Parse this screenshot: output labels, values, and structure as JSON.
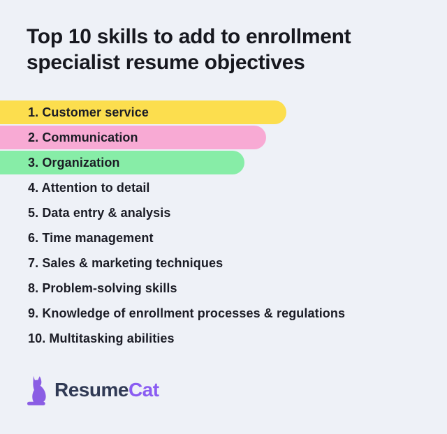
{
  "page": {
    "background_color": "#eef1f7"
  },
  "title": {
    "line1": "Top 10 skills to add to enrollment",
    "line2": "specialist resume objectives",
    "color": "#17181f"
  },
  "skills_list": {
    "text_color": "#1b1c25",
    "items": [
      {
        "label": "1. Customer service",
        "highlight_color": "#fcde4e",
        "highlight_width": 410
      },
      {
        "label": "2. Communication",
        "highlight_color": "#f8aad4",
        "highlight_width": 381
      },
      {
        "label": "3. Organization",
        "highlight_color": "#87eda7",
        "highlight_width": 350
      },
      {
        "label": "4. Attention to detail"
      },
      {
        "label": "5. Data entry & analysis"
      },
      {
        "label": "6. Time management"
      },
      {
        "label": "7. Sales & marketing techniques"
      },
      {
        "label": "8. Problem-solving skills"
      },
      {
        "label": "9. Knowledge of enrollment processes & regulations"
      },
      {
        "label": "10. Multitasking abilities"
      }
    ]
  },
  "logo": {
    "icon": "cat-icon",
    "icon_color": "#8a5de4",
    "brand_prefix": "Resume",
    "brand_prefix_color": "#303a55",
    "brand_suffix": "Cat",
    "brand_suffix_color": "#8a5cf2"
  }
}
